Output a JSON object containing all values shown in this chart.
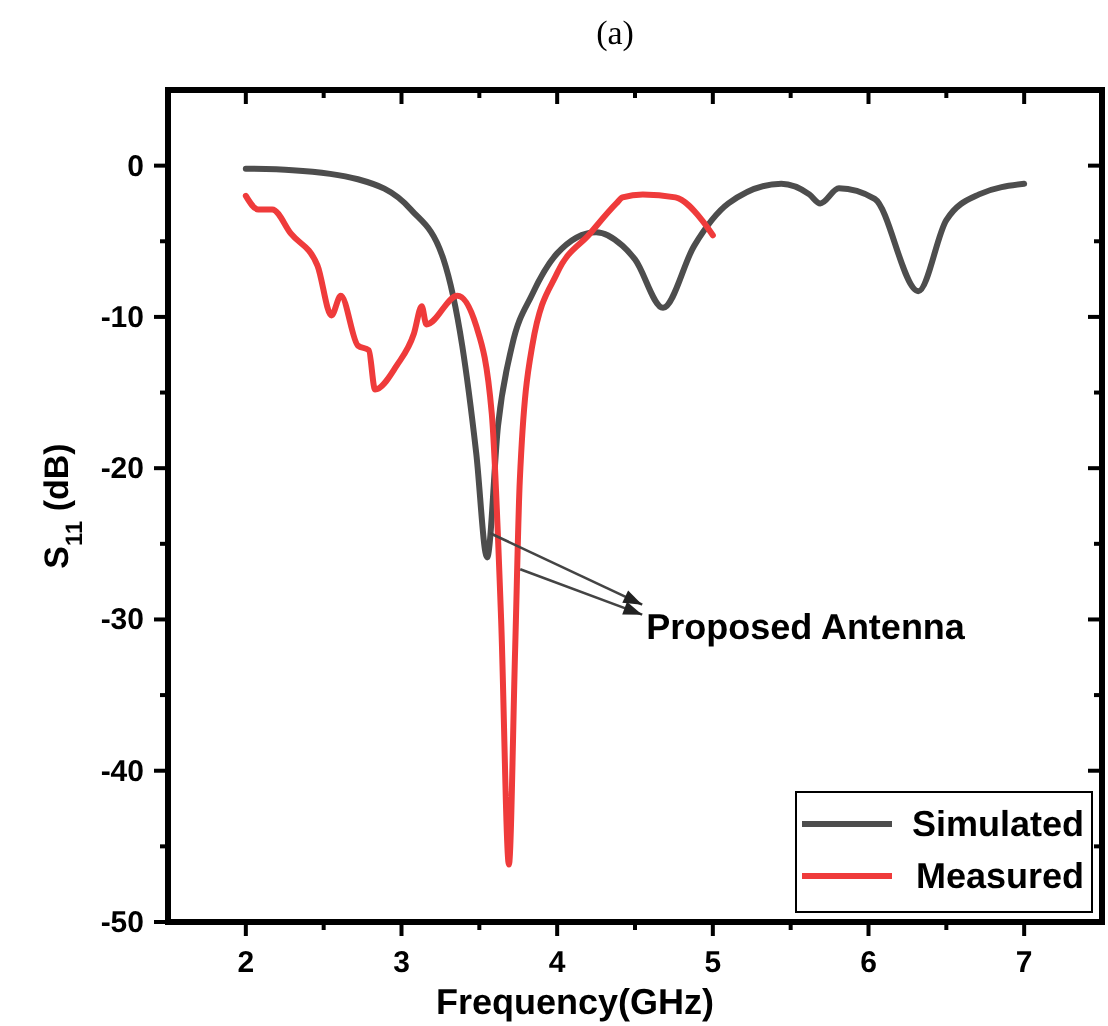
{
  "chart_data": {
    "type": "line",
    "title": "(a)",
    "xlabel": "Frequency(GHz)",
    "ylabel": "S$_{11}$ (dB)",
    "xlim": [
      1.5,
      7.5
    ],
    "xticks": [
      2,
      3,
      4,
      5,
      6,
      7
    ],
    "ylim": [
      -50,
      5
    ],
    "yticks": [
      -50,
      -40,
      -30,
      -20,
      -10,
      0
    ],
    "legend": "bottom right",
    "grid": false,
    "annotations": [
      {
        "text": "Proposed Antenna",
        "x": 3.57,
        "y": -24.3
      }
    ],
    "series": [
      {
        "name": "Simulated",
        "color": "#4d4d4d",
        "x": [
          2.0,
          2.3,
          2.72,
          3.06,
          3.27,
          3.39,
          3.48,
          3.55,
          3.62,
          3.71,
          3.84,
          4.0,
          4.25,
          4.42,
          4.5,
          4.68,
          4.88,
          5.1,
          5.44,
          5.62,
          5.69,
          5.81,
          6.04,
          6.32,
          6.5,
          6.71,
          7.0
        ],
        "values": [
          -0.2,
          -0.3,
          -0.9,
          -2.9,
          -6.2,
          -11.9,
          -19,
          -25.9,
          -17.2,
          -11.9,
          -8.5,
          -5.8,
          -4.4,
          -5.3,
          -6.2,
          -9.4,
          -5.3,
          -2.5,
          -1.2,
          -1.9,
          -2.5,
          -1.5,
          -2.2,
          -8.3,
          -3.6,
          -1.9,
          -1.2
        ]
      },
      {
        "name": "Measured",
        "color": "#ef3b3b",
        "x": [
          2.0,
          2.08,
          2.17,
          2.29,
          2.46,
          2.55,
          2.61,
          2.72,
          2.79,
          2.83,
          2.97,
          3.08,
          3.13,
          3.16,
          3.36,
          3.48,
          3.58,
          3.64,
          3.69,
          3.73,
          3.76,
          3.84,
          4.0,
          4.21,
          4.38,
          4.42,
          4.55,
          4.76,
          4.93,
          5.0
        ],
        "values": [
          -2.0,
          -2.9,
          -2.9,
          -4.5,
          -6.6,
          -9.9,
          -8.6,
          -11.9,
          -12.2,
          -14.8,
          -13.2,
          -11.1,
          -9.3,
          -10.5,
          -8.6,
          -10.6,
          -16.4,
          -30,
          -46.2,
          -32,
          -20.8,
          -11.9,
          -7.1,
          -4.5,
          -2.5,
          -2.1,
          -1.9,
          -2.1,
          -3.6,
          -4.6
        ]
      }
    ]
  }
}
